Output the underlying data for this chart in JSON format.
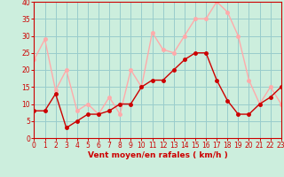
{
  "x": [
    0,
    1,
    2,
    3,
    4,
    5,
    6,
    7,
    8,
    9,
    10,
    11,
    12,
    13,
    14,
    15,
    16,
    17,
    18,
    19,
    20,
    21,
    22,
    23
  ],
  "mean_wind": [
    8,
    8,
    13,
    3,
    5,
    7,
    7,
    8,
    10,
    10,
    15,
    17,
    17,
    20,
    23,
    25,
    25,
    17,
    11,
    7,
    7,
    10,
    12,
    15
  ],
  "gust_wind": [
    23,
    29,
    14,
    20,
    8,
    10,
    7,
    12,
    7,
    20,
    15,
    31,
    26,
    25,
    30,
    35,
    35,
    40,
    37,
    30,
    17,
    10,
    15,
    10
  ],
  "mean_color": "#cc0000",
  "gust_color": "#ffaaaa",
  "bg_color": "#cceedd",
  "grid_color": "#99cccc",
  "axis_color": "#cc0000",
  "xlabel": "Vent moyen/en rafales ( km/h )",
  "ylim": [
    0,
    40
  ],
  "xlim": [
    0,
    23
  ],
  "yticks": [
    0,
    5,
    10,
    15,
    20,
    25,
    30,
    35,
    40
  ],
  "xticks": [
    0,
    1,
    2,
    3,
    4,
    5,
    6,
    7,
    8,
    9,
    10,
    11,
    12,
    13,
    14,
    15,
    16,
    17,
    18,
    19,
    20,
    21,
    22,
    23
  ],
  "marker_size": 2.5,
  "line_width": 1.0
}
